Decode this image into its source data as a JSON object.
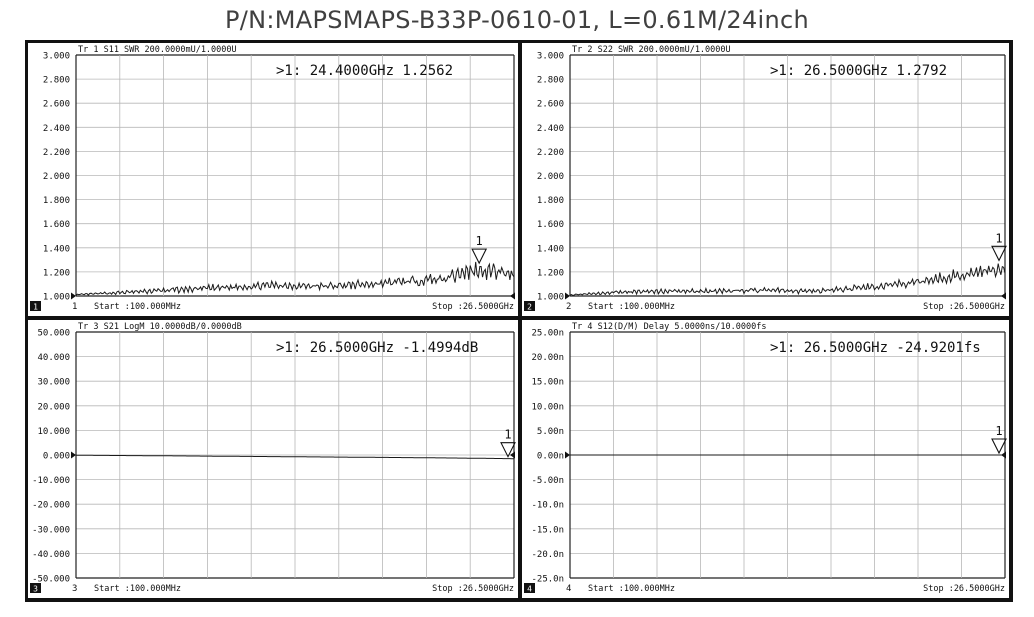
{
  "title": "P/N:MAPSMAPS-B33P-0610-01, L=0.61M/24inch",
  "colors": {
    "trace": "#1a1a1a",
    "grid": "#b8b8b8",
    "frame": "#111111",
    "background": "#ffffff"
  },
  "chart_data": [
    {
      "type": "line",
      "panel_number": "1",
      "header": "Tr 1  S11 SWR 200.0000mU/1.0000U",
      "marker_readout": ">1:   24.4000GHz  1.2562",
      "marker": {
        "label": "1",
        "x_ghz": 24.4,
        "y": 1.2562
      },
      "y_ticks": [
        "3.000",
        "2.800",
        "2.600",
        "2.400",
        "2.200",
        "2.000",
        "1.800",
        "1.600",
        "1.400",
        "1.200",
        "1.000"
      ],
      "ylim": [
        1.0,
        3.0
      ],
      "xlim_ghz": [
        0.1,
        26.5
      ],
      "reference_value": 1.0,
      "start_label": "Start :100.000MHz",
      "stop_label": "Stop :26.5000GHz",
      "channel_label": "1",
      "series": [
        {
          "x_ghz": [
            0.1,
            3,
            6,
            9,
            12,
            15,
            18,
            20,
            22,
            23,
            24.4,
            25.5,
            26.5
          ],
          "y": [
            1.01,
            1.03,
            1.05,
            1.07,
            1.09,
            1.08,
            1.1,
            1.12,
            1.14,
            1.18,
            1.22,
            1.2,
            1.19
          ],
          "ripple": [
            0.005,
            0.015,
            0.025,
            0.03,
            0.03,
            0.03,
            0.035,
            0.04,
            0.05,
            0.07,
            0.07,
            0.07,
            0.06
          ]
        }
      ]
    },
    {
      "type": "line",
      "panel_number": "2",
      "header": "Tr 2  S22 SWR 200.0000mU/1.0000U",
      "marker_readout": ">1:   26.5000GHz  1.2792",
      "marker": {
        "label": "1",
        "x_ghz": 26.5,
        "y": 1.2792
      },
      "y_ticks": [
        "3.000",
        "2.800",
        "2.600",
        "2.400",
        "2.200",
        "2.000",
        "1.800",
        "1.600",
        "1.400",
        "1.200",
        "1.000"
      ],
      "ylim": [
        1.0,
        3.0
      ],
      "xlim_ghz": [
        0.1,
        26.5
      ],
      "reference_value": 1.0,
      "start_label": "Start :100.000MHz",
      "stop_label": "Stop :26.5000GHz",
      "channel_label": "2",
      "series": [
        {
          "x_ghz": [
            0.1,
            3,
            6,
            9,
            12,
            15,
            18,
            20,
            22,
            23,
            24.5,
            26,
            26.5
          ],
          "y": [
            1.01,
            1.03,
            1.04,
            1.04,
            1.05,
            1.04,
            1.07,
            1.1,
            1.13,
            1.16,
            1.2,
            1.21,
            1.23
          ],
          "ripple": [
            0.005,
            0.015,
            0.02,
            0.02,
            0.025,
            0.02,
            0.03,
            0.035,
            0.04,
            0.045,
            0.05,
            0.05,
            0.04
          ]
        }
      ]
    },
    {
      "type": "line",
      "panel_number": "3",
      "header": "Tr 3  S21 LogM 10.0000dB/0.0000dB",
      "marker_readout": ">1:   26.5000GHz -1.4994dB",
      "marker": {
        "label": "1",
        "x_ghz": 26.5,
        "y": -1.4994
      },
      "y_ticks": [
        "50.000",
        "40.000",
        "30.000",
        "20.000",
        "10.000",
        "0.000",
        "-10.000",
        "-20.000",
        "-30.000",
        "-40.000",
        "-50.000"
      ],
      "ylim": [
        -50,
        50
      ],
      "xlim_ghz": [
        0.1,
        26.5
      ],
      "reference_value": 0,
      "start_label": "Start :100.000MHz",
      "stop_label": "Stop :26.5000GHz",
      "channel_label": "3",
      "series": [
        {
          "x_ghz": [
            0.1,
            5,
            10,
            15,
            20,
            24,
            26.5
          ],
          "y": [
            -0.1,
            -0.3,
            -0.55,
            -0.8,
            -1.05,
            -1.3,
            -1.5
          ],
          "ripple": [
            0,
            0,
            0,
            0,
            0,
            0,
            0
          ]
        }
      ]
    },
    {
      "type": "line",
      "panel_number": "4",
      "header": "Tr 4  S12(D/M) Delay 5.0000ns/10.0000fs",
      "marker_readout": ">1:   26.5000GHz -24.9201fs",
      "marker": {
        "label": "1",
        "x_ghz": 26.5,
        "y": -2.49e-05
      },
      "y_ticks": [
        "25.00n",
        "20.00n",
        "15.00n",
        "10.00n",
        "5.00n",
        "0.00n",
        "-5.00n",
        "-10.0n",
        "-15.0n",
        "-20.0n",
        "-25.0n"
      ],
      "ylim": [
        -25,
        25
      ],
      "xlim_ghz": [
        0.1,
        26.5
      ],
      "reference_value": 0,
      "start_label": "Start :100.000MHz",
      "stop_label": "Stop :26.5000GHz",
      "channel_label": "4",
      "series": [
        {
          "x_ghz": [
            0.1,
            10,
            20,
            26.5
          ],
          "y": [
            0,
            0,
            0,
            0
          ],
          "ripple": [
            0,
            0,
            0,
            0
          ]
        }
      ]
    }
  ]
}
